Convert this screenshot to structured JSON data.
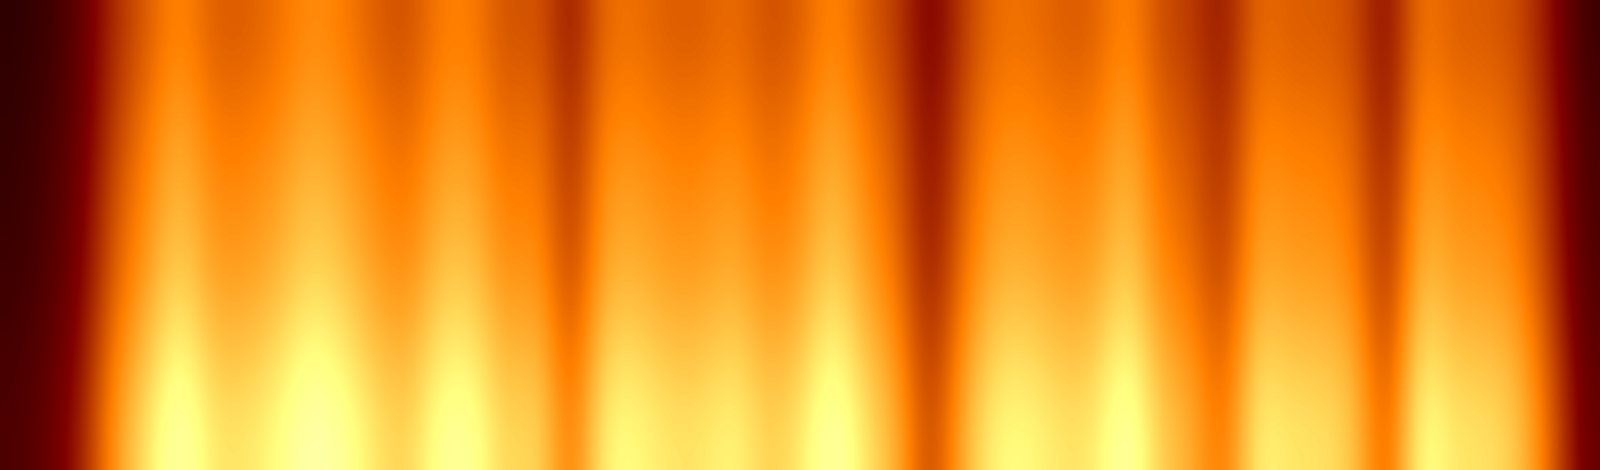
{
  "chart_data": {
    "type": "heatmap",
    "color": "afmhot",
    "tick_labels": false,
    "color_range": [
      0,
      1
    ],
    "cells": [
      [
        0.09,
        0.12,
        0.19,
        0.34,
        0.43,
        0.53,
        0.43,
        0.43,
        0.47,
        0.53,
        0.5,
        0.43,
        0.4,
        0.5,
        0.5,
        0.4,
        0.43,
        0.28,
        0.47,
        0.47,
        0.43,
        0.43,
        0.47,
        0.4,
        0.43,
        0.53,
        0.43,
        0.37,
        0.22,
        0.37,
        0.47,
        0.47,
        0.43,
        0.43,
        0.53,
        0.4,
        0.37,
        0.28,
        0.47,
        0.43,
        0.43,
        0.4,
        0.25,
        0.5,
        0.43,
        0.43,
        0.4,
        0.28,
        0.12
      ],
      [
        0.1,
        0.14,
        0.2,
        0.37,
        0.48,
        0.58,
        0.48,
        0.48,
        0.51,
        0.58,
        0.54,
        0.48,
        0.44,
        0.54,
        0.54,
        0.44,
        0.48,
        0.31,
        0.51,
        0.51,
        0.48,
        0.48,
        0.51,
        0.44,
        0.48,
        0.58,
        0.48,
        0.41,
        0.24,
        0.41,
        0.51,
        0.51,
        0.48,
        0.48,
        0.58,
        0.44,
        0.41,
        0.31,
        0.51,
        0.48,
        0.48,
        0.44,
        0.27,
        0.54,
        0.48,
        0.48,
        0.44,
        0.31,
        0.14
      ],
      [
        0.11,
        0.15,
        0.22,
        0.41,
        0.52,
        0.63,
        0.52,
        0.52,
        0.56,
        0.63,
        0.59,
        0.52,
        0.48,
        0.59,
        0.59,
        0.48,
        0.52,
        0.33,
        0.56,
        0.56,
        0.52,
        0.52,
        0.56,
        0.48,
        0.52,
        0.63,
        0.52,
        0.44,
        0.26,
        0.44,
        0.56,
        0.56,
        0.52,
        0.52,
        0.63,
        0.48,
        0.44,
        0.33,
        0.56,
        0.52,
        0.52,
        0.48,
        0.3,
        0.59,
        0.52,
        0.52,
        0.48,
        0.33,
        0.15
      ],
      [
        0.12,
        0.16,
        0.24,
        0.44,
        0.56,
        0.68,
        0.56,
        0.56,
        0.6,
        0.68,
        0.64,
        0.56,
        0.52,
        0.64,
        0.64,
        0.52,
        0.56,
        0.36,
        0.6,
        0.6,
        0.56,
        0.56,
        0.6,
        0.52,
        0.56,
        0.68,
        0.56,
        0.48,
        0.28,
        0.48,
        0.6,
        0.6,
        0.56,
        0.56,
        0.68,
        0.52,
        0.48,
        0.36,
        0.6,
        0.56,
        0.56,
        0.52,
        0.32,
        0.64,
        0.56,
        0.56,
        0.52,
        0.36,
        0.16
      ],
      [
        0.14,
        0.18,
        0.27,
        0.5,
        0.63,
        0.77,
        0.63,
        0.63,
        0.68,
        0.77,
        0.72,
        0.63,
        0.59,
        0.72,
        0.72,
        0.59,
        0.63,
        0.41,
        0.68,
        0.68,
        0.63,
        0.63,
        0.68,
        0.59,
        0.63,
        0.77,
        0.63,
        0.54,
        0.32,
        0.54,
        0.68,
        0.68,
        0.63,
        0.63,
        0.77,
        0.59,
        0.54,
        0.41,
        0.68,
        0.63,
        0.63,
        0.59,
        0.36,
        0.72,
        0.63,
        0.63,
        0.59,
        0.41,
        0.18
      ],
      [
        0.15,
        0.2,
        0.3,
        0.55,
        0.7,
        0.85,
        0.7,
        0.7,
        0.75,
        0.85,
        0.8,
        0.7,
        0.65,
        0.8,
        0.8,
        0.65,
        0.7,
        0.45,
        0.75,
        0.75,
        0.7,
        0.7,
        0.75,
        0.65,
        0.7,
        0.85,
        0.7,
        0.6,
        0.35,
        0.6,
        0.75,
        0.75,
        0.7,
        0.7,
        0.85,
        0.65,
        0.6,
        0.45,
        0.75,
        0.7,
        0.7,
        0.65,
        0.4,
        0.8,
        0.7,
        0.7,
        0.65,
        0.45,
        0.2
      ]
    ]
  }
}
